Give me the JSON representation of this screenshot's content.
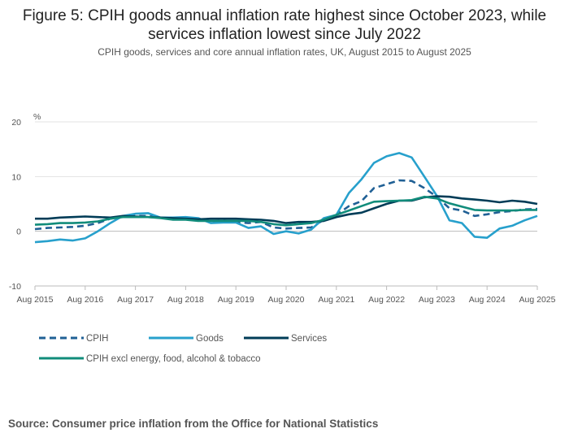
{
  "chart_data": {
    "type": "line",
    "title": "Figure 5: CPIH goods annual inflation rate highest since October 2023, while services inflation lowest since July 2022",
    "subtitle": "CPIH goods, services and core annual inflation rates, UK, August 2015 to August 2025",
    "ylabel": "%",
    "ylim": [
      -10,
      20
    ],
    "yticks": [
      "20",
      "10",
      "0",
      "-10"
    ],
    "xticks": [
      "Aug 2015",
      "Aug 2016",
      "Aug 2017",
      "Aug 2018",
      "Aug 2019",
      "Aug 2020",
      "Aug 2021",
      "Aug 2022",
      "Aug 2023",
      "Aug 2024",
      "Aug 2025"
    ],
    "grid": true,
    "legend_position": "bottom",
    "x": [
      "Aug 2015",
      "Nov 2015",
      "Feb 2016",
      "May 2016",
      "Aug 2016",
      "Nov 2016",
      "Feb 2017",
      "May 2017",
      "Aug 2017",
      "Nov 2017",
      "Feb 2018",
      "May 2018",
      "Aug 2018",
      "Nov 2018",
      "Feb 2019",
      "May 2019",
      "Aug 2019",
      "Nov 2019",
      "Feb 2020",
      "May 2020",
      "Aug 2020",
      "Nov 2020",
      "Feb 2021",
      "May 2021",
      "Aug 2021",
      "Nov 2021",
      "Feb 2022",
      "May 2022",
      "Aug 2022",
      "Nov 2022",
      "Feb 2023",
      "May 2023",
      "Aug 2023",
      "Nov 2023",
      "Feb 2024",
      "May 2024",
      "Aug 2024",
      "Nov 2024",
      "Feb 2025",
      "May 2025",
      "Aug 2025"
    ],
    "series": [
      {
        "name": "CPIH",
        "color": "#206095",
        "dashed": true,
        "values": [
          0.4,
          0.6,
          0.7,
          0.8,
          1.0,
          1.5,
          2.3,
          2.7,
          2.8,
          2.8,
          2.5,
          2.3,
          2.4,
          2.2,
          1.8,
          1.9,
          1.7,
          1.5,
          1.7,
          0.7,
          0.5,
          0.6,
          0.7,
          2.1,
          3.0,
          4.6,
          5.5,
          7.9,
          8.6,
          9.3,
          9.2,
          7.9,
          6.3,
          4.2,
          3.8,
          2.8,
          3.1,
          3.5,
          3.7,
          4.0,
          4.1
        ]
      },
      {
        "name": "Goods",
        "color": "#27a0cc",
        "dashed": false,
        "values": [
          -2.0,
          -1.8,
          -1.5,
          -1.7,
          -1.3,
          0.0,
          1.5,
          2.8,
          3.2,
          3.3,
          2.5,
          2.5,
          2.6,
          2.4,
          1.5,
          1.6,
          1.6,
          0.6,
          0.9,
          -0.5,
          0.0,
          -0.4,
          0.3,
          2.4,
          3.0,
          7.0,
          9.5,
          12.5,
          13.7,
          14.3,
          13.5,
          10.0,
          6.5,
          2.0,
          1.5,
          -1.0,
          -1.2,
          0.5,
          1.0,
          2.0,
          2.8
        ]
      },
      {
        "name": "Services",
        "color": "#003c57",
        "dashed": false,
        "values": [
          2.3,
          2.3,
          2.5,
          2.6,
          2.7,
          2.6,
          2.5,
          2.8,
          2.7,
          2.6,
          2.5,
          2.4,
          2.3,
          2.2,
          2.3,
          2.3,
          2.3,
          2.2,
          2.1,
          1.9,
          1.5,
          1.7,
          1.7,
          1.9,
          2.6,
          3.1,
          3.4,
          4.2,
          5.0,
          5.6,
          5.6,
          6.2,
          6.4,
          6.3,
          6.0,
          5.8,
          5.6,
          5.3,
          5.6,
          5.4,
          5.0
        ]
      },
      {
        "name": "CPIH excl energy, food, alcohol & tobacco",
        "color": "#118c7b",
        "dashed": false,
        "values": [
          1.2,
          1.3,
          1.5,
          1.5,
          1.6,
          1.8,
          2.3,
          2.6,
          2.6,
          2.6,
          2.4,
          2.1,
          2.1,
          1.9,
          1.9,
          1.9,
          1.9,
          1.9,
          1.7,
          1.3,
          1.1,
          1.3,
          1.5,
          2.1,
          3.0,
          3.8,
          4.6,
          5.4,
          5.5,
          5.6,
          5.7,
          6.3,
          6.0,
          5.1,
          4.5,
          3.9,
          3.8,
          3.8,
          3.8,
          3.9,
          3.9
        ]
      }
    ]
  },
  "source": "Source: Consumer price inflation from the Office for National Statistics"
}
